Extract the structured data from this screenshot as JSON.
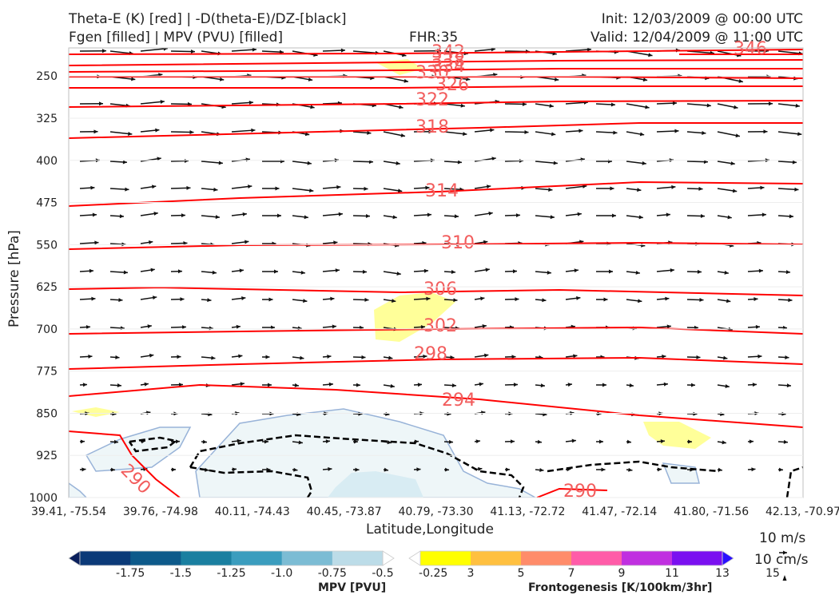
{
  "header": {
    "left_line1": "Theta-E (K) [red] | -D(theta-E)/DZ-[black]",
    "left_line2": "Fgen [filled] | MPV (PVU) [filled]",
    "center": "FHR:35",
    "right_line1": "Init: 12/03/2009 @ 00:00 UTC",
    "right_line2": "Valid: 12/04/2009 @ 11:00 UTC"
  },
  "colors": {
    "theta_e": "#ff0000",
    "theta_e_label": "#f25c5c",
    "stability": "#000000",
    "fgen_fill": "#ffff99",
    "mpv_fill": "#eef6f8",
    "mpv_edge": "#98b3d8"
  },
  "chart_data": {
    "type": "contour",
    "xlabel": "Latitude,Longitude",
    "ylabel": "Pressure [hPa]",
    "x_ticks": [
      "39.41, -75.54",
      "39.76, -74.98",
      "40.11, -74.43",
      "40.45, -73.87",
      "40.79, -73.30",
      "41.13, -72.72",
      "41.47, -72.14",
      "41.80, -71.56",
      "42.13, -70.97"
    ],
    "y_ticks": [
      250,
      325,
      400,
      475,
      550,
      625,
      700,
      775,
      850,
      925,
      1000
    ],
    "ylim": [
      1000,
      200
    ],
    "y_scale": "linear-inverted",
    "grid": true,
    "theta_e_contours": [
      {
        "value": 342,
        "label": "342"
      },
      {
        "value": 338,
        "label": "338"
      },
      {
        "value": 334,
        "label": "334"
      },
      {
        "value": 330,
        "label": "330"
      },
      {
        "value": 326,
        "label": "326"
      },
      {
        "value": 322,
        "label": "322"
      },
      {
        "value": 318,
        "label": "318"
      },
      {
        "value": 314,
        "label": "314"
      },
      {
        "value": 310,
        "label": "310"
      },
      {
        "value": 306,
        "label": "306"
      },
      {
        "value": 302,
        "label": "302"
      },
      {
        "value": 298,
        "label": "298"
      },
      {
        "value": 294,
        "label": "294"
      },
      {
        "value": 290,
        "label": "290"
      },
      {
        "value": 290,
        "label": "290"
      },
      {
        "value": 346,
        "label": "346"
      }
    ],
    "mpv_colorbar": {
      "label": "MPV [PVU]",
      "ticks": [
        "-1.75",
        "-1.5",
        "-1.25",
        "-1.0",
        "-0.75",
        "-0.5",
        "-0.25"
      ],
      "colors": [
        "#0a1f5c",
        "#0b3a78",
        "#0d5a8a",
        "#1a7fa0",
        "#3b9dbe",
        "#7cbcd4",
        "#bcdce8",
        "#ffffff"
      ]
    },
    "fgen_colorbar": {
      "label": "Frontogenesis [K/100km/3hr]",
      "ticks": [
        "3",
        "5",
        "7",
        "9",
        "11",
        "13",
        "15"
      ],
      "colors": [
        "#ffffff",
        "#ffff00",
        "#ffc040",
        "#ff8c6a",
        "#ff5ca8",
        "#c030e0",
        "#7a10f0",
        "#2a10ff"
      ]
    },
    "reference_vectors": {
      "horizontal": "10 m/s",
      "vertical": "10 cm/s"
    }
  }
}
